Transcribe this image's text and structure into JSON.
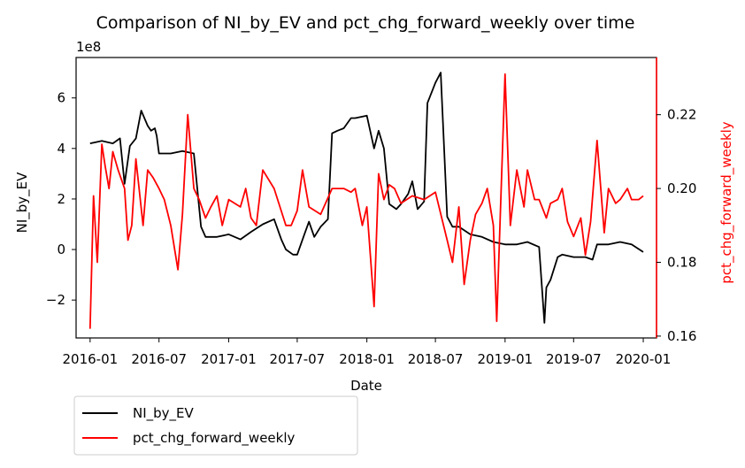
{
  "chart_data": {
    "type": "line",
    "title": "Comparison of NI_by_EV and pct_chg_forward_weekly over time",
    "xlabel": "Date",
    "ylabel_left": "NI_by_EV",
    "ylabel_right": "pct_chg_forward_weekly",
    "left_offset_label": "1e8",
    "x_range": [
      "2015-11-25",
      "2020-02-05"
    ],
    "xticks": [
      "2016-01",
      "2016-07",
      "2017-01",
      "2017-07",
      "2018-01",
      "2018-07",
      "2019-01",
      "2019-07",
      "2020-01"
    ],
    "ylim_left": [
      -3.5,
      7.6
    ],
    "yticks_left": [
      -2,
      0,
      2,
      4,
      6
    ],
    "ylim_right": [
      0.1595,
      0.2355
    ],
    "yticks_right": [
      0.16,
      0.18,
      0.2,
      0.22
    ],
    "grid": false,
    "legend_position": "below-left",
    "legend": [
      "NI_by_EV",
      "pct_chg_forward_weekly"
    ],
    "series": [
      {
        "name": "NI_by_EV",
        "axis": "left",
        "color": "#000000",
        "unit_scale": "1e8",
        "x": [
          "2016-01-01",
          "2016-02-01",
          "2016-03-01",
          "2016-03-20",
          "2016-04-01",
          "2016-04-15",
          "2016-05-01",
          "2016-05-15",
          "2016-06-01",
          "2016-06-10",
          "2016-06-20",
          "2016-06-25",
          "2016-07-01",
          "2016-08-01",
          "2016-09-01",
          "2016-10-01",
          "2016-10-20",
          "2016-11-01",
          "2016-12-01",
          "2017-01-01",
          "2017-02-01",
          "2017-03-01",
          "2017-04-01",
          "2017-05-01",
          "2017-05-20",
          "2017-06-01",
          "2017-06-20",
          "2017-07-01",
          "2017-07-20",
          "2017-08-01",
          "2017-08-15",
          "2017-09-01",
          "2017-09-20",
          "2017-10-01",
          "2017-10-15",
          "2017-11-01",
          "2017-11-20",
          "2017-12-01",
          "2018-01-01",
          "2018-01-20",
          "2018-02-01",
          "2018-02-15",
          "2018-03-01",
          "2018-03-20",
          "2018-04-01",
          "2018-04-20",
          "2018-05-01",
          "2018-05-15",
          "2018-06-01",
          "2018-06-10",
          "2018-07-01",
          "2018-07-15",
          "2018-08-01",
          "2018-08-15",
          "2018-08-25",
          "2018-09-01",
          "2018-10-01",
          "2018-11-01",
          "2018-12-01",
          "2019-01-01",
          "2019-02-01",
          "2019-03-01",
          "2019-04-01",
          "2019-04-15",
          "2019-04-20",
          "2019-05-01",
          "2019-05-20",
          "2019-06-01",
          "2019-07-01",
          "2019-08-01",
          "2019-08-20",
          "2019-09-01",
          "2019-10-01",
          "2019-11-01",
          "2019-12-01",
          "2020-01-01"
        ],
        "values": [
          4.2,
          4.3,
          4.2,
          4.4,
          2.6,
          4.1,
          4.4,
          5.5,
          4.9,
          4.7,
          4.8,
          4.5,
          3.8,
          3.8,
          3.9,
          3.8,
          0.9,
          0.5,
          0.5,
          0.6,
          0.4,
          0.7,
          1.0,
          1.2,
          0.4,
          0.0,
          -0.2,
          -0.2,
          0.6,
          1.1,
          0.5,
          0.9,
          1.2,
          4.6,
          4.7,
          4.8,
          5.2,
          5.2,
          5.3,
          4.0,
          4.7,
          4.0,
          1.8,
          1.6,
          1.8,
          2.2,
          2.7,
          1.6,
          1.9,
          5.8,
          6.6,
          7.0,
          1.3,
          0.9,
          0.9,
          0.9,
          0.6,
          0.5,
          0.3,
          0.2,
          0.2,
          0.3,
          0.1,
          -2.9,
          -1.5,
          -1.2,
          -0.3,
          -0.2,
          -0.3,
          -0.3,
          -0.4,
          0.2,
          0.2,
          0.3,
          0.2,
          -0.1
        ]
      },
      {
        "name": "pct_chg_forward_weekly",
        "axis": "right",
        "color": "#ff0000",
        "x": [
          "2016-01-01",
          "2016-01-10",
          "2016-01-20",
          "2016-02-01",
          "2016-02-10",
          "2016-02-20",
          "2016-03-01",
          "2016-03-15",
          "2016-04-01",
          "2016-04-10",
          "2016-04-20",
          "2016-05-01",
          "2016-05-20",
          "2016-06-01",
          "2016-06-15",
          "2016-07-01",
          "2016-07-15",
          "2016-08-01",
          "2016-08-20",
          "2016-09-01",
          "2016-09-15",
          "2016-10-01",
          "2016-10-15",
          "2016-11-01",
          "2016-11-15",
          "2016-12-01",
          "2016-12-15",
          "2017-01-01",
          "2017-02-01",
          "2017-02-15",
          "2017-03-01",
          "2017-03-15",
          "2017-04-01",
          "2017-05-01",
          "2017-06-01",
          "2017-06-15",
          "2017-07-01",
          "2017-07-15",
          "2017-08-01",
          "2017-09-01",
          "2017-10-01",
          "2017-11-01",
          "2017-11-20",
          "2017-12-01",
          "2017-12-20",
          "2018-01-01",
          "2018-01-20",
          "2018-02-01",
          "2018-02-15",
          "2018-03-01",
          "2018-03-15",
          "2018-04-01",
          "2018-05-01",
          "2018-06-01",
          "2018-07-01",
          "2018-08-01",
          "2018-08-15",
          "2018-09-01",
          "2018-09-15",
          "2018-10-01",
          "2018-10-15",
          "2018-11-01",
          "2018-11-15",
          "2018-12-01",
          "2018-12-10",
          "2019-01-01",
          "2019-01-15",
          "2019-02-01",
          "2019-02-20",
          "2019-03-01",
          "2019-03-20",
          "2019-04-01",
          "2019-04-20",
          "2019-05-01",
          "2019-05-20",
          "2019-06-01",
          "2019-06-15",
          "2019-07-01",
          "2019-07-20",
          "2019-08-01",
          "2019-08-15",
          "2019-09-01",
          "2019-09-20",
          "2019-10-01",
          "2019-10-20",
          "2019-11-01",
          "2019-11-20",
          "2019-12-01",
          "2019-12-20",
          "2020-01-01"
        ],
        "values": [
          0.162,
          0.198,
          0.18,
          0.212,
          0.206,
          0.2,
          0.21,
          0.205,
          0.2,
          0.186,
          0.19,
          0.208,
          0.19,
          0.205,
          0.203,
          0.2,
          0.197,
          0.19,
          0.178,
          0.193,
          0.22,
          0.2,
          0.197,
          0.192,
          0.195,
          0.198,
          0.19,
          0.197,
          0.195,
          0.2,
          0.192,
          0.19,
          0.205,
          0.2,
          0.19,
          0.19,
          0.194,
          0.205,
          0.195,
          0.193,
          0.2,
          0.2,
          0.199,
          0.2,
          0.19,
          0.195,
          0.168,
          0.204,
          0.197,
          0.201,
          0.2,
          0.196,
          0.198,
          0.197,
          0.199,
          0.186,
          0.18,
          0.195,
          0.174,
          0.186,
          0.193,
          0.196,
          0.2,
          0.19,
          0.164,
          0.231,
          0.19,
          0.205,
          0.195,
          0.205,
          0.197,
          0.197,
          0.192,
          0.196,
          0.197,
          0.2,
          0.191,
          0.187,
          0.192,
          0.182,
          0.191,
          0.213,
          0.188,
          0.2,
          0.196,
          0.197,
          0.2,
          0.197,
          0.197,
          0.198
        ]
      }
    ]
  }
}
